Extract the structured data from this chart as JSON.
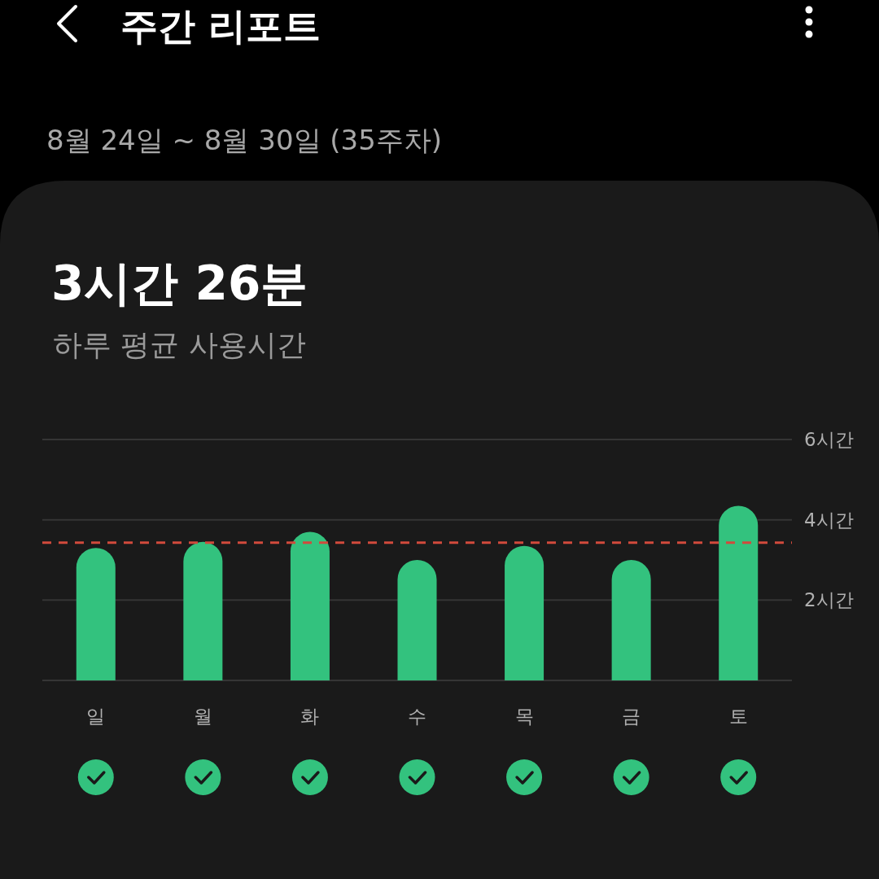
{
  "chart_data": {
    "type": "bar",
    "title": "주간 리포트",
    "subtitle": "8월 24일 ~ 8월 30일 (35주차)",
    "annotations": [
      "3시간 26분",
      "하루 평균 사용시간"
    ],
    "categories": [
      "일",
      "월",
      "화",
      "수",
      "목",
      "금",
      "토"
    ],
    "values": [
      3.3,
      3.45,
      3.7,
      3.0,
      3.35,
      3.0,
      4.35
    ],
    "color": "#33c27e",
    "ylim": [
      0,
      6
    ],
    "yticks": [
      {
        "value": 0,
        "label": null
      },
      {
        "value": 2,
        "label": "2시간"
      },
      {
        "value": 4,
        "label": "4시간"
      },
      {
        "value": 6,
        "label": "6시간"
      }
    ],
    "grid": "y",
    "ref_lines": [
      {
        "axis": "y",
        "value": 3.43,
        "color": "#d24a3c",
        "line_style": "dashed"
      }
    ]
  }
}
